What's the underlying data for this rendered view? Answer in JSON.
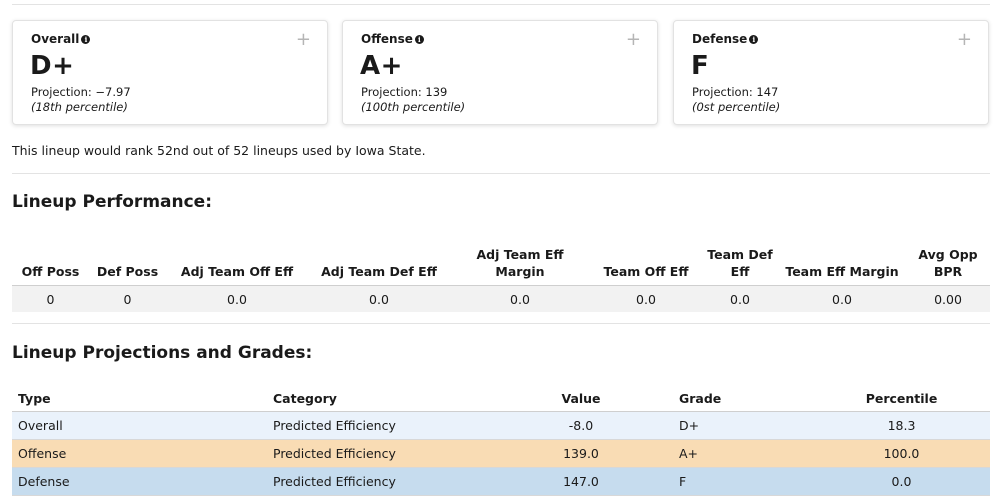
{
  "cards": [
    {
      "title": "Overall",
      "grade": "D+",
      "projection": "Projection: −7.97",
      "percentile": "(18th percentile)"
    },
    {
      "title": "Offense",
      "grade": "A+",
      "projection": "Projection: 139",
      "percentile": "(100th percentile)"
    },
    {
      "title": "Defense",
      "grade": "F",
      "projection": "Projection: 147",
      "percentile": "(0st percentile)"
    }
  ],
  "card_icons": {
    "info": "info-icon",
    "expand": "plus-icon"
  },
  "rank_text": "This lineup would rank 52nd out of 52 lineups used by Iowa State.",
  "performance": {
    "title": "Lineup Performance:",
    "headers": [
      "Off Poss",
      "Def Poss",
      "Adj Team Off Eff",
      "Adj Team Def Eff",
      "Adj Team Eff Margin",
      "Team Off Eff",
      "Team Def Eff",
      "Team Eff Margin",
      "Avg Opp BPR"
    ],
    "values": [
      "0",
      "0",
      "0.0",
      "0.0",
      "0.0",
      "0.0",
      "0.0",
      "0.0",
      "0.00"
    ]
  },
  "projections": {
    "title": "Lineup Projections and Grades:",
    "headers": [
      "Type",
      "Category",
      "Value",
      "Grade",
      "Percentile"
    ],
    "rows": [
      {
        "type": "Overall",
        "category": "Predicted Efficiency",
        "value": "-8.0",
        "grade": "D+",
        "percentile": "18.3",
        "color": "#eaf2fb"
      },
      {
        "type": "Offense",
        "category": "Predicted Efficiency",
        "value": "139.0",
        "grade": "A+",
        "percentile": "100.0",
        "color": "#f9dcb4"
      },
      {
        "type": "Defense",
        "category": "Predicted Efficiency",
        "value": "147.0",
        "grade": "F",
        "percentile": "0.0",
        "color": "#c6dcee"
      }
    ]
  }
}
